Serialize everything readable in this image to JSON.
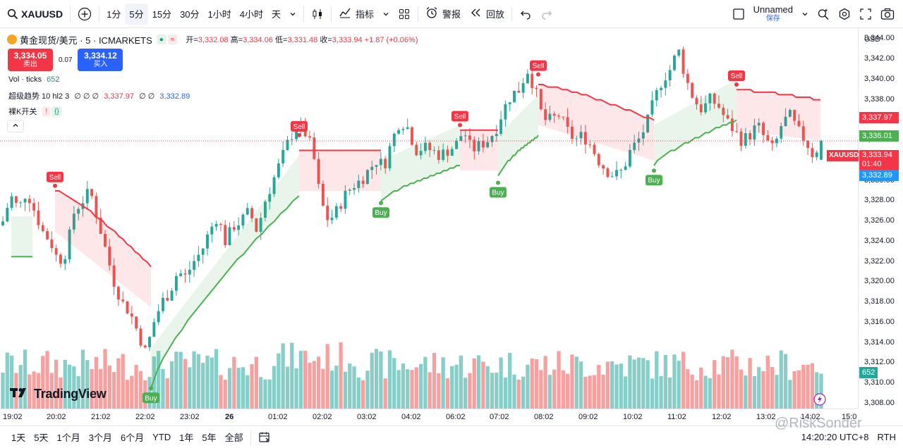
{
  "toolbar": {
    "symbol": "XAUUSD",
    "intervals": [
      "1分",
      "5分",
      "15分",
      "30分",
      "1小时",
      "4小时",
      "天"
    ],
    "active_interval": "5分",
    "indicators_label": "指标",
    "alert_label": "警报",
    "replay_label": "回放",
    "layout_name": "Unnamed",
    "layout_save": "保存"
  },
  "legend": {
    "title": "黄金现货/美元 · 5 · ICMARKETS",
    "ohlc": {
      "o_label": "开=",
      "o": "3,332.08",
      "h_label": "高=",
      "h": "3,334.06",
      "l_label": "低=",
      "l": "3,331.48",
      "c_label": "收=",
      "c": "3,333.94",
      "chg": "+1.87 (+0.06%)"
    },
    "sell_price": "3,334.05",
    "sell_label": "卖出",
    "spread": "0.07",
    "buy_price": "3,334.12",
    "buy_label": "买入",
    "vol_label": "Vol · ticks",
    "vol_value": "652",
    "supertrend_label": "超级趋势 10 hl2 3",
    "supertrend_zeros": "∅ ∅ ∅",
    "supertrend_up": "3,337.97",
    "supertrend_zeros2": "∅ ∅",
    "supertrend_dn": "3,332.89",
    "naked_k_label": "裸K开关"
  },
  "price_axis": {
    "currency": "USD",
    "ticks": [
      "3,344.00",
      "3,342.00",
      "3,340.00",
      "3,338.00",
      "3,336.00",
      "3,334.00",
      "3,332.00",
      "3,330.00",
      "3,328.00",
      "3,326.00",
      "3,324.00",
      "3,322.00",
      "3,320.00",
      "3,318.00",
      "3,316.00",
      "3,314.00",
      "3,312.00",
      "3,310.00",
      "3,308.00"
    ],
    "tag_upper": "3,337.97",
    "tag_mid": "3,336.01",
    "tag_symbol": "XAUUSD",
    "tag_price": "3,333.94",
    "tag_countdown": "01:40",
    "tag_lower": "3,332.89",
    "tag_vol": "652"
  },
  "time_axis": {
    "ticks": [
      "19:02",
      "20:02",
      "21:02",
      "22:02",
      "23:02",
      "26",
      "01:02",
      "02:02",
      "03:02",
      "04:02",
      "06:02",
      "07:02",
      "08:02",
      "09:02",
      "10:02",
      "11:02",
      "12:02",
      "13:02",
      "14:02",
      "15:0"
    ]
  },
  "signals": {
    "sell": "Sell",
    "buy": "Buy"
  },
  "bottom_bar": {
    "ranges": [
      "1天",
      "5天",
      "1个月",
      "3个月",
      "6个月",
      "YTD",
      "1年",
      "5年",
      "全部"
    ],
    "clock": "14:20:20 UTC+8",
    "session": "RTH"
  },
  "branding": {
    "logo_text": "TradingView",
    "watermark": "@RiskSonder"
  },
  "colors": {
    "up": "#26a69a",
    "down": "#ef5350",
    "trend_up": "#4caf50",
    "trend_down": "#f23645",
    "accent": "#2962ff"
  },
  "chart_data": {
    "type": "candlestick",
    "symbol": "XAUUSD",
    "interval": "5",
    "ylim": [
      3307.5,
      3345.0
    ],
    "x_start_label": "19:02",
    "close_path": [
      3326.0,
      3328.5,
      3327.2,
      3329.0,
      3327.0,
      3325.0,
      3324.0,
      3322.0,
      3323.0,
      3327.0,
      3328.0,
      3329.0,
      3326.0,
      3323.0,
      3320.0,
      3318.0,
      3317.0,
      3315.0,
      3313.0,
      3316.0,
      3318.0,
      3319.0,
      3321.0,
      3320.5,
      3322.0,
      3323.0,
      3325.0,
      3326.5,
      3324.0,
      3325.5,
      3326.0,
      3327.0,
      3325.0,
      3328.0,
      3330.0,
      3332.0,
      3334.0,
      3335.5,
      3334.8,
      3333.0,
      3328.0,
      3326.0,
      3327.0,
      3328.5,
      3329.5,
      3330.0,
      3331.0,
      3332.0,
      3331.5,
      3334.0,
      3336.0,
      3335.2,
      3333.0,
      3333.3,
      3333.0,
      3332.5,
      3333.0,
      3333.5,
      3335.0,
      3333.0,
      3333.5,
      3334.0,
      3335.0,
      3337.0,
      3338.5,
      3339.0,
      3341.0,
      3339.0,
      3336.0,
      3336.0,
      3336.5,
      3335.0,
      3334.0,
      3334.5,
      3333.5,
      3332.0,
      3331.0,
      3330.5,
      3331.0,
      3333.0,
      3334.0,
      3335.5,
      3338.0,
      3340.0,
      3341.0,
      3343.0,
      3340.0,
      3338.0,
      3337.0,
      3338.0,
      3337.5,
      3336.0,
      3335.0,
      3334.0,
      3334.5,
      3335.5,
      3334.0,
      3333.0,
      3335.5,
      3336.5,
      3335.0,
      3334.0,
      3332.5,
      3333.94
    ],
    "supertrend_segments": [
      {
        "direction": "up",
        "from": "19:02",
        "to": "19:30",
        "level": 3322.5
      },
      {
        "direction": "down",
        "from": "20:10",
        "to": "22:10",
        "level": 3329.0,
        "end_level": 3321.5
      },
      {
        "direction": "up",
        "from": "22:10",
        "to": "01:20",
        "level": 3309.5,
        "end_level": 3328.5
      },
      {
        "direction": "down",
        "from": "01:20",
        "to": "03:20",
        "level": 3333.0
      },
      {
        "direction": "up",
        "from": "03:20",
        "to": "06:20",
        "level": 3328.0,
        "end_level": 3331.5
      },
      {
        "direction": "down",
        "from": "06:20",
        "to": "07:05",
        "level": 3335.0
      },
      {
        "direction": "up",
        "from": "07:05",
        "to": "08:00",
        "level": 3330.5,
        "end_level": 3334.5
      },
      {
        "direction": "down",
        "from": "08:00",
        "to": "10:40",
        "level": 3339.5,
        "end_level": 3336.0
      },
      {
        "direction": "up",
        "from": "10:40",
        "to": "12:20",
        "level": 3331.5,
        "end_level": 3336.0
      },
      {
        "direction": "down",
        "from": "12:20",
        "to": "14:20",
        "level": 3339.0,
        "end_level": 3337.97
      }
    ],
    "signals": [
      {
        "type": "Sell",
        "time": "20:10",
        "price": 3329.5
      },
      {
        "type": "Buy",
        "time": "22:10",
        "price": 3309.5
      },
      {
        "type": "Sell",
        "time": "01:20",
        "price": 3334.5
      },
      {
        "type": "Buy",
        "time": "03:20",
        "price": 3327.8
      },
      {
        "type": "Sell",
        "time": "06:20",
        "price": 3335.5
      },
      {
        "type": "Buy",
        "time": "07:05",
        "price": 3329.8
      },
      {
        "type": "Sell",
        "time": "08:00",
        "price": 3340.5
      },
      {
        "type": "Buy",
        "time": "10:40",
        "price": 3331.0
      },
      {
        "type": "Sell",
        "time": "12:20",
        "price": 3339.5
      }
    ],
    "last": {
      "open": 3332.08,
      "high": 3334.06,
      "low": 3331.48,
      "close": 3333.94
    },
    "volume_last": 652
  }
}
